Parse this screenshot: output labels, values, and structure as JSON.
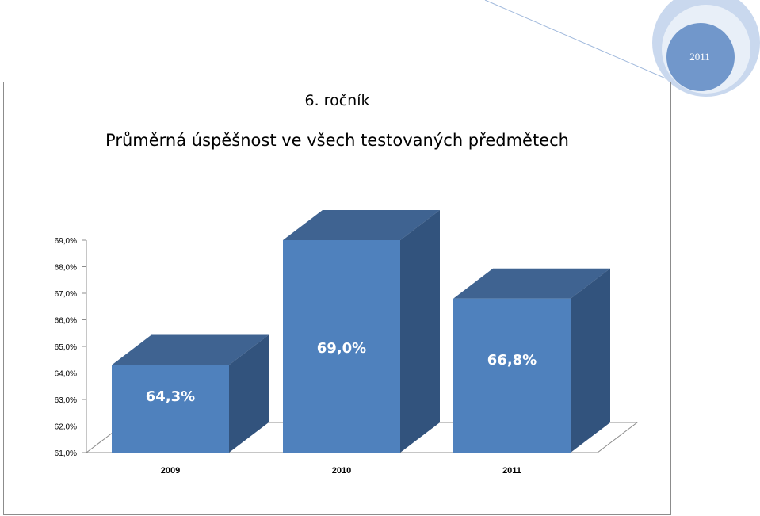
{
  "page": {
    "year_badge": "2011",
    "grade_title": "6. ročník",
    "colors": {
      "bar_front": "#4f81bd",
      "bar_top": "#3f6391",
      "bar_side": "#32537d",
      "deco_outer": "#c6d5ec",
      "deco_inner": "#7197cb"
    }
  },
  "chart_data": {
    "type": "bar",
    "title": "Průměrná úspěšnost ve všech testovaných předmětech",
    "categories": [
      "2009",
      "2010",
      "2011"
    ],
    "values": [
      64.3,
      69.0,
      66.8
    ],
    "data_labels": [
      "64,3%",
      "69,0%",
      "66,8%"
    ],
    "ylim": [
      61,
      69
    ],
    "y_ticks": [
      "61,0%",
      "62,0%",
      "63,0%",
      "64,0%",
      "65,0%",
      "66,0%",
      "67,0%",
      "68,0%",
      "69,0%"
    ],
    "xlabel": "",
    "ylabel": "",
    "grid": false,
    "legend": "none",
    "style": "3d-column"
  }
}
